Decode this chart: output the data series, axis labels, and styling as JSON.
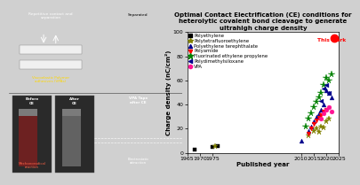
{
  "title": "Optimal Contact Electrification (CE) conditions for\nheterolytic covalent bond cleavage to generate\nultrahigh charge density",
  "xlabel": "Published year",
  "ylabel": "Charge density (nC/cm²)",
  "xlim": [
    1965,
    2025
  ],
  "ylim": [
    0,
    100
  ],
  "yticks": [
    0,
    20,
    40,
    60,
    80,
    100
  ],
  "xticks": [
    1965,
    1970,
    1975,
    2010,
    2015,
    2020,
    2025
  ],
  "xticklabels": [
    "1965",
    "1970",
    "1975",
    "2010",
    "2015",
    "2020",
    "2025"
  ],
  "series": [
    {
      "label": "Polyethylene",
      "color": "#000000",
      "marker": "s",
      "ms": 2.5,
      "points": [
        [
          1968,
          2.5
        ],
        [
          1975,
          5.0
        ],
        [
          1977,
          5.5
        ]
      ]
    },
    {
      "label": "Polytetrafluoroethylene",
      "color": "#808000",
      "marker": "*",
      "ms": 4.5,
      "points": [
        [
          1976,
          5.5
        ],
        [
          2013,
          14
        ],
        [
          2015,
          18
        ],
        [
          2016,
          20
        ],
        [
          2017,
          17
        ],
        [
          2018,
          22
        ],
        [
          2019,
          21
        ],
        [
          2020,
          26
        ],
        [
          2021,
          28
        ]
      ]
    },
    {
      "label": "Polyethylene terephthalate",
      "color": "#00008B",
      "marker": "^",
      "ms": 3.5,
      "points": [
        [
          2010,
          10
        ],
        [
          2013,
          18
        ],
        [
          2014,
          22
        ],
        [
          2015,
          26
        ],
        [
          2016,
          30
        ],
        [
          2017,
          33
        ],
        [
          2018,
          36
        ],
        [
          2019,
          40
        ],
        [
          2020,
          52
        ],
        [
          2021,
          50
        ],
        [
          2022,
          46
        ]
      ]
    },
    {
      "label": "Polyamide",
      "color": "#FF0000",
      "marker": "v",
      "ms": 3.5,
      "points": [
        [
          2013,
          16
        ],
        [
          2014,
          20
        ],
        [
          2015,
          24
        ],
        [
          2016,
          27
        ],
        [
          2017,
          29
        ],
        [
          2018,
          31
        ],
        [
          2019,
          34
        ],
        [
          2020,
          36
        ]
      ]
    },
    {
      "label": "Fluorinated ethylene propylene",
      "color": "#008000",
      "marker": "*",
      "ms": 5.5,
      "points": [
        [
          2012,
          22
        ],
        [
          2013,
          28
        ],
        [
          2014,
          33
        ],
        [
          2015,
          38
        ],
        [
          2016,
          42
        ],
        [
          2017,
          46
        ],
        [
          2018,
          50
        ],
        [
          2019,
          56
        ],
        [
          2020,
          62
        ],
        [
          2021,
          60
        ],
        [
          2022,
          65
        ]
      ]
    },
    {
      "label": "Polydimethylsiloxane",
      "color": "#00008B",
      "marker": "<",
      "ms": 3.5,
      "points": [
        [
          2018,
          43
        ],
        [
          2019,
          53
        ],
        [
          2020,
          56
        ],
        [
          2021,
          50
        ]
      ]
    },
    {
      "label": "VPA",
      "color": "#FF1493",
      "marker": "o",
      "ms": 3.5,
      "points": [
        [
          2018,
          28
        ],
        [
          2019,
          33
        ],
        [
          2020,
          36
        ],
        [
          2021,
          38
        ],
        [
          2022,
          34
        ]
      ]
    }
  ],
  "this_work_year": 2023,
  "this_work_value": 95,
  "this_work_color": "#FF0000",
  "this_work_ms": 6,
  "background_color": "#ffffff",
  "title_fontsize": 5.0,
  "label_fontsize": 5.0,
  "tick_fontsize": 4.5,
  "legend_fontsize": 3.8,
  "left_bg": "#1c1c1c",
  "left_text_color_white": "#ffffff",
  "left_text_color_yellow": "#FFD700",
  "left_text_color_red": "#FF6347",
  "tape_color": "#f0f0f0",
  "vial_left_color": "#7a2020",
  "vial_right_color": "#888888"
}
